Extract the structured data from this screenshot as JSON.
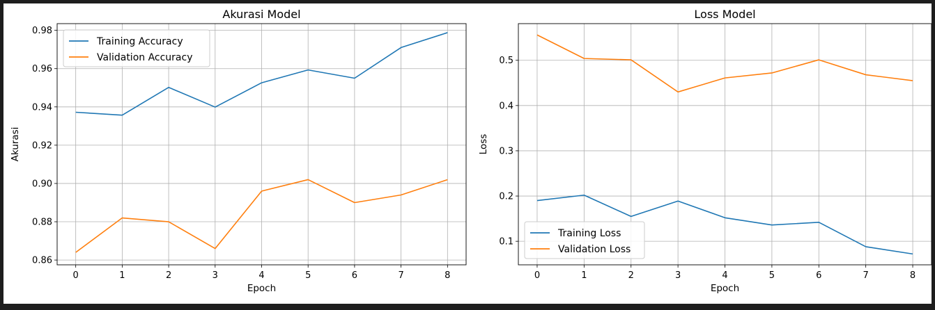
{
  "figure": {
    "background": "#ffffff",
    "frame": "#1e1e1e"
  },
  "chart_data": [
    {
      "type": "line",
      "title": "Akurasi Model",
      "xlabel": "Epoch",
      "ylabel": "Akurasi",
      "x": [
        0,
        1,
        2,
        3,
        4,
        5,
        6,
        7,
        8
      ],
      "xticks": [
        "0",
        "1",
        "2",
        "3",
        "4",
        "5",
        "6",
        "7",
        "8"
      ],
      "xlim": [
        -0.4,
        8.4
      ],
      "ylim": [
        0.8575,
        0.9835
      ],
      "yticks": [
        "0.86",
        "0.88",
        "0.90",
        "0.92",
        "0.94",
        "0.96",
        "0.98"
      ],
      "yticks_values": [
        0.86,
        0.88,
        0.9,
        0.92,
        0.94,
        0.96,
        0.98
      ],
      "grid": true,
      "legend_position": "upper left",
      "series": [
        {
          "name": "Training Accuracy",
          "color": "#1f77b4",
          "values": [
            0.9372,
            0.9357,
            0.9502,
            0.9399,
            0.9526,
            0.9593,
            0.955,
            0.971,
            0.9788
          ]
        },
        {
          "name": "Validation Accuracy",
          "color": "#ff7f0e",
          "values": [
            0.864,
            0.882,
            0.88,
            0.866,
            0.896,
            0.902,
            0.89,
            0.894,
            0.902
          ]
        }
      ]
    },
    {
      "type": "line",
      "title": "Loss Model",
      "xlabel": "Epoch",
      "ylabel": "Loss",
      "x": [
        0,
        1,
        2,
        3,
        4,
        5,
        6,
        7,
        8
      ],
      "xticks": [
        "0",
        "1",
        "2",
        "3",
        "4",
        "5",
        "6",
        "7",
        "8"
      ],
      "xlim": [
        -0.4,
        8.4
      ],
      "ylim": [
        0.048,
        0.581
      ],
      "yticks": [
        "0.1",
        "0.2",
        "0.3",
        "0.4",
        "0.5"
      ],
      "yticks_values": [
        0.1,
        0.2,
        0.3,
        0.4,
        0.5
      ],
      "grid": true,
      "legend_position": "lower left",
      "series": [
        {
          "name": "Training Loss",
          "color": "#1f77b4",
          "values": [
            0.19,
            0.202,
            0.155,
            0.189,
            0.152,
            0.136,
            0.142,
            0.088,
            0.072
          ]
        },
        {
          "name": "Validation Loss",
          "color": "#ff7f0e",
          "values": [
            0.556,
            0.504,
            0.501,
            0.43,
            0.461,
            0.472,
            0.501,
            0.468,
            0.455
          ]
        }
      ]
    }
  ]
}
